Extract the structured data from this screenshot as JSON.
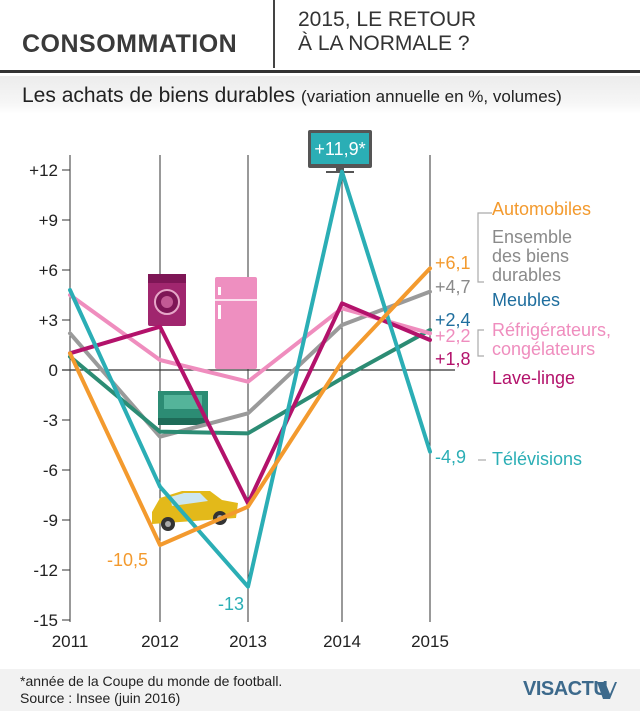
{
  "header": {
    "section": "CONSOMMATION",
    "headline_line1": "2015, LE RETOUR",
    "headline_line2": "À LA NORMALE ?"
  },
  "subtitle": {
    "main": "Les achats de biens durables",
    "detail": "(variation annuelle en %, volumes)"
  },
  "chart_data": {
    "type": "line",
    "title": "Les achats de biens durables",
    "ylabel": "variation annuelle en %, volumes",
    "x": [
      2011,
      2012,
      2013,
      2014,
      2015
    ],
    "x_tick_labels": [
      "2011",
      "2012",
      "2013",
      "2014",
      "2015"
    ],
    "y_ticks": [
      12,
      9,
      6,
      3,
      0,
      -3,
      -6,
      -9,
      -12,
      -15
    ],
    "y_tick_labels": [
      "+12",
      "+9",
      "+6",
      "+3",
      "0",
      "-3",
      "-6",
      "-9",
      "-12",
      "-15"
    ],
    "ylim": [
      -15,
      12.5
    ],
    "series": [
      {
        "name": "Automobiles",
        "key": "auto",
        "color": "#F39A2E",
        "values": [
          1.0,
          -10.5,
          -8.2,
          0.5,
          6.1
        ],
        "end_label": "+6,1"
      },
      {
        "name": "Ensemble des biens durables",
        "key": "ensemble",
        "color": "#9A9A9A",
        "values": [
          2.2,
          -4.0,
          -2.6,
          2.7,
          4.7
        ],
        "end_label": "+4,7"
      },
      {
        "name": "Meubles",
        "key": "meubles",
        "color": "#2C8C74",
        "values": [
          0.8,
          -3.7,
          -3.8,
          -0.5,
          2.4
        ],
        "end_label": "+2,4"
      },
      {
        "name": "Réfrigérateurs, congélateurs",
        "key": "frigo",
        "color": "#EF8DBE",
        "values": [
          4.5,
          0.6,
          -0.7,
          3.7,
          2.2
        ],
        "end_label": "+2,2"
      },
      {
        "name": "Lave-linge",
        "key": "lavelinge",
        "color": "#B3126B",
        "values": [
          1.0,
          2.6,
          -8.0,
          4.0,
          1.8
        ],
        "end_label": "+1,8"
      },
      {
        "name": "Télévisions",
        "key": "tv",
        "color": "#2BAEB5",
        "values": [
          4.8,
          -7.0,
          -13.0,
          11.9,
          -4.9
        ],
        "end_label": "-4,9"
      }
    ],
    "legend": [
      {
        "key": "auto",
        "lines": [
          "Automobiles"
        ],
        "color": "#F39A2E"
      },
      {
        "key": "ensemble",
        "lines": [
          "Ensemble",
          "des biens",
          "durables"
        ],
        "color": "#8A8A8A"
      },
      {
        "key": "meubles",
        "lines": [
          "Meubles"
        ],
        "color": "#1F6E9E"
      },
      {
        "key": "frigo",
        "lines": [
          "Réfrigérateurs,",
          "congélateurs"
        ],
        "color": "#EF8DBE"
      },
      {
        "key": "lavelinge",
        "lines": [
          "Lave-linge"
        ],
        "color": "#B3126B"
      },
      {
        "key": "tv",
        "lines": [
          "Télévisions"
        ],
        "color": "#2BAEB5"
      }
    ],
    "end_value_labels": [
      {
        "key": "auto",
        "text": "+6,1",
        "color": "#F39A2E"
      },
      {
        "key": "ensemble",
        "text": "+4,7",
        "color": "#8A8A8A"
      },
      {
        "key": "meubles",
        "text": "+2,4",
        "color": "#1F6E9E"
      },
      {
        "key": "frigo",
        "text": "+2,2",
        "color": "#EF8DBE"
      },
      {
        "key": "lavelinge",
        "text": "+1,8",
        "color": "#B3126B"
      },
      {
        "key": "tv",
        "text": "-4,9",
        "color": "#2BAEB5"
      }
    ],
    "annotations": [
      {
        "key": "auto_2012",
        "text": "-10,5",
        "color": "#F39A2E"
      },
      {
        "key": "tv_2013",
        "text": "-13",
        "color": "#2BAEB5"
      },
      {
        "key": "tv_2014",
        "text": "+11,9*",
        "color": "#2BAEB5"
      }
    ]
  },
  "icons": {
    "car": "car-icon",
    "washing_machine": "washing-machine-icon",
    "fridge": "fridge-icon",
    "sofa": "sofa-icon",
    "television": "television-icon"
  },
  "footer": {
    "footnote": "*année de la Coupe du monde de football.",
    "source": "Source : Insee (juin 2016)",
    "logo": "VISACTU"
  }
}
